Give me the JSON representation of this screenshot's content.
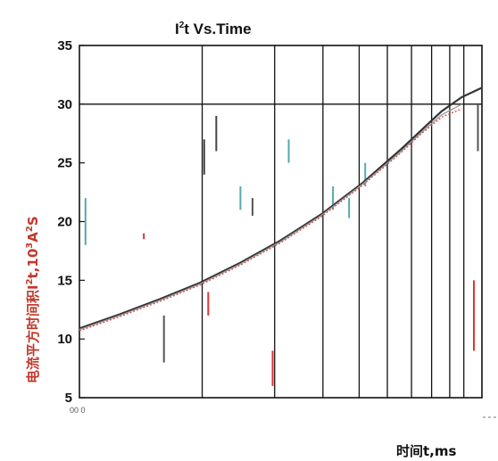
{
  "chart_data": {
    "type": "line",
    "title": {
      "prefix": "I",
      "sup": "2",
      "rest": "t  Vs.Time"
    },
    "ylabel": {
      "main": "电流平方时间积I",
      "sup1": "2",
      "mid": "t,10",
      "sup2": "3",
      "mid2": "A",
      "sup3": "2",
      "end": "S"
    },
    "xlabel": "时间t,ms",
    "x_tick_artifact": "00 0",
    "ylim": [
      5,
      35
    ],
    "xlim": [
      0,
      1
    ],
    "y_ticks": [
      "5",
      "10",
      "15",
      "20",
      "25",
      "30",
      "35"
    ],
    "x_gridlines": [
      0.305,
      0.485,
      0.605,
      0.695,
      0.765,
      0.825,
      0.875,
      0.92,
      0.955
    ],
    "series": [
      {
        "color": "#333333",
        "x": [
          0,
          0.1,
          0.2,
          0.3,
          0.4,
          0.5,
          0.6,
          0.7,
          0.8,
          0.85,
          0.9,
          0.95,
          1.0
        ],
        "values": [
          10.9,
          12.1,
          13.4,
          14.8,
          16.5,
          18.4,
          20.6,
          23.2,
          26.2,
          27.8,
          29.4,
          30.6,
          31.4
        ]
      },
      {
        "color": "#d94040",
        "x": [
          0,
          0.1,
          0.2,
          0.3,
          0.4,
          0.5,
          0.6,
          0.7,
          0.8,
          0.85,
          0.9,
          0.95
        ],
        "values": [
          10.7,
          11.9,
          13.2,
          14.6,
          16.3,
          18.2,
          20.4,
          23.0,
          25.9,
          27.5,
          28.9,
          29.6
        ]
      },
      {
        "color": "#999999",
        "x": [
          0,
          0.1,
          0.2,
          0.3,
          0.4,
          0.5,
          0.6,
          0.7,
          0.8,
          0.85,
          0.9,
          0.95
        ],
        "values": [
          10.8,
          12.0,
          13.3,
          14.7,
          16.4,
          18.3,
          20.5,
          23.1,
          26.0,
          27.6,
          29.1,
          30.0
        ]
      }
    ],
    "grid": true,
    "legend": "none",
    "axis_color": "#111111"
  }
}
